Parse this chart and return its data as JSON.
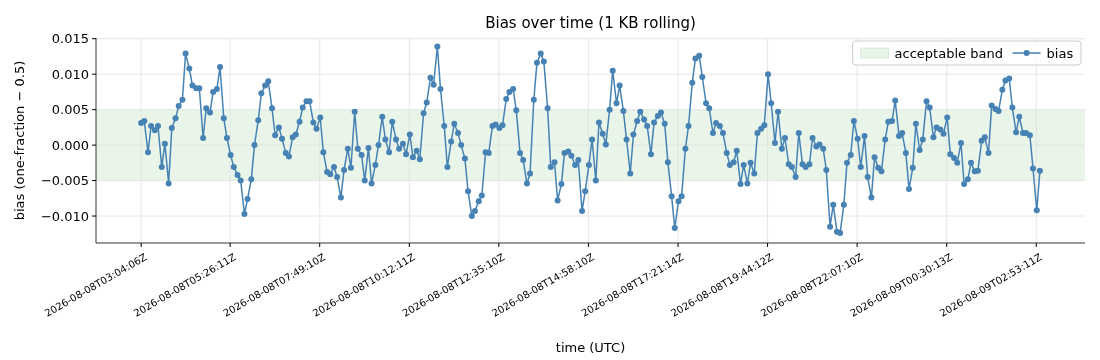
{
  "chart_data": {
    "type": "line",
    "title": "Bias over time (1 KB rolling)",
    "xlabel": "time (UTC)",
    "ylabel": "bias (one-fraction − 0.5)",
    "x": [
      "2026-08-08T03:04",
      "2026-08-08T03:09",
      "2026-08-08T03:15",
      "2026-08-08T03:20",
      "2026-08-08T03:26",
      "2026-08-08T03:31",
      "2026-08-08T03:37",
      "2026-08-08T03:42",
      "2026-08-08T03:48",
      "2026-08-08T03:53",
      "2026-08-08T03:59",
      "2026-08-08T04:04",
      "2026-08-08T04:10",
      "2026-08-08T04:15",
      "2026-08-08T04:21",
      "2026-08-08T04:26",
      "2026-08-08T04:32",
      "2026-08-08T04:37",
      "2026-08-08T04:43",
      "2026-08-08T04:48",
      "2026-08-08T04:54",
      "2026-08-08T04:59",
      "2026-08-08T05:05",
      "2026-08-08T05:10",
      "2026-08-08T05:16",
      "2026-08-08T05:21",
      "2026-08-08T05:27",
      "2026-08-08T05:32",
      "2026-08-08T05:38",
      "2026-08-08T05:43",
      "2026-08-08T05:49",
      "2026-08-08T05:54",
      "2026-08-08T06:00",
      "2026-08-08T06:05",
      "2026-08-08T06:11",
      "2026-08-08T06:16",
      "2026-08-08T06:22",
      "2026-08-08T06:27",
      "2026-08-08T06:33",
      "2026-08-08T06:38",
      "2026-08-08T06:44",
      "2026-08-08T06:49",
      "2026-08-08T06:55",
      "2026-08-08T07:00",
      "2026-08-08T07:06",
      "2026-08-08T07:11",
      "2026-08-08T07:17",
      "2026-08-08T07:22",
      "2026-08-08T07:28",
      "2026-08-08T07:33",
      "2026-08-08T07:39",
      "2026-08-08T07:44",
      "2026-08-08T07:50",
      "2026-08-08T07:55",
      "2026-08-08T08:01",
      "2026-08-08T08:06",
      "2026-08-08T08:12",
      "2026-08-08T08:17",
      "2026-08-08T08:23",
      "2026-08-08T08:28",
      "2026-08-08T08:34",
      "2026-08-08T08:39",
      "2026-08-08T08:45",
      "2026-08-08T08:50",
      "2026-08-08T08:56",
      "2026-08-08T09:01",
      "2026-08-08T09:07",
      "2026-08-08T09:12",
      "2026-08-08T09:18",
      "2026-08-08T09:23",
      "2026-08-08T09:29",
      "2026-08-08T09:34",
      "2026-08-08T09:40",
      "2026-08-08T09:45",
      "2026-08-08T09:51",
      "2026-08-08T09:56",
      "2026-08-08T10:02",
      "2026-08-08T10:07",
      "2026-08-08T10:13",
      "2026-08-08T10:18",
      "2026-08-08T10:24",
      "2026-08-08T10:29",
      "2026-08-08T10:35",
      "2026-08-08T10:40",
      "2026-08-08T10:46",
      "2026-08-08T10:51",
      "2026-08-08T10:57",
      "2026-08-08T11:02",
      "2026-08-08T11:08",
      "2026-08-08T11:13",
      "2026-08-08T11:19",
      "2026-08-08T11:24",
      "2026-08-08T11:30",
      "2026-08-08T11:35",
      "2026-08-08T11:41",
      "2026-08-08T11:46",
      "2026-08-08T11:52",
      "2026-08-08T11:57",
      "2026-08-08T12:03",
      "2026-08-08T12:08",
      "2026-08-08T12:14",
      "2026-08-08T12:19",
      "2026-08-08T12:25",
      "2026-08-08T12:30",
      "2026-08-08T12:36",
      "2026-08-08T12:41",
      "2026-08-08T12:47",
      "2026-08-08T12:52",
      "2026-08-08T12:58",
      "2026-08-08T13:03",
      "2026-08-08T13:09",
      "2026-08-08T13:14",
      "2026-08-08T13:20",
      "2026-08-08T13:25",
      "2026-08-08T13:31",
      "2026-08-08T13:36",
      "2026-08-08T13:42",
      "2026-08-08T13:47",
      "2026-08-08T13:53",
      "2026-08-08T13:58",
      "2026-08-08T14:04",
      "2026-08-08T14:09",
      "2026-08-08T14:15",
      "2026-08-08T14:20",
      "2026-08-08T14:26",
      "2026-08-08T14:31",
      "2026-08-08T14:37",
      "2026-08-08T14:42",
      "2026-08-08T14:48",
      "2026-08-08T14:53",
      "2026-08-08T14:59",
      "2026-08-08T15:04",
      "2026-08-08T15:10",
      "2026-08-08T15:15",
      "2026-08-08T15:21",
      "2026-08-08T15:26",
      "2026-08-08T15:32",
      "2026-08-08T15:37",
      "2026-08-08T15:43",
      "2026-08-08T15:48",
      "2026-08-08T15:54",
      "2026-08-08T15:59",
      "2026-08-08T16:05",
      "2026-08-08T16:10",
      "2026-08-08T16:16",
      "2026-08-08T16:21",
      "2026-08-08T16:27",
      "2026-08-08T16:32",
      "2026-08-08T16:38",
      "2026-08-08T16:43",
      "2026-08-08T16:49",
      "2026-08-08T16:54",
      "2026-08-08T17:00",
      "2026-08-08T17:05",
      "2026-08-08T17:11",
      "2026-08-08T17:16",
      "2026-08-08T17:22",
      "2026-08-08T17:27",
      "2026-08-08T17:33",
      "2026-08-08T17:38",
      "2026-08-08T17:44",
      "2026-08-08T17:49",
      "2026-08-08T17:55",
      "2026-08-08T18:00",
      "2026-08-08T18:06",
      "2026-08-08T18:11",
      "2026-08-08T18:17",
      "2026-08-08T18:22",
      "2026-08-08T18:28",
      "2026-08-08T18:33",
      "2026-08-08T18:39",
      "2026-08-08T18:44",
      "2026-08-08T18:50",
      "2026-08-08T18:55",
      "2026-08-08T19:01",
      "2026-08-08T19:06",
      "2026-08-08T19:12",
      "2026-08-08T19:17",
      "2026-08-08T19:23",
      "2026-08-08T19:28",
      "2026-08-08T19:34",
      "2026-08-08T19:39",
      "2026-08-08T19:45",
      "2026-08-08T19:50",
      "2026-08-08T19:56",
      "2026-08-08T20:01",
      "2026-08-08T20:07",
      "2026-08-08T20:12",
      "2026-08-08T20:18",
      "2026-08-08T20:23",
      "2026-08-08T20:29",
      "2026-08-08T20:34",
      "2026-08-08T20:40",
      "2026-08-08T20:45",
      "2026-08-08T20:51",
      "2026-08-08T20:56",
      "2026-08-08T21:02",
      "2026-08-08T21:07",
      "2026-08-08T21:13",
      "2026-08-08T21:18",
      "2026-08-08T21:24",
      "2026-08-08T21:29",
      "2026-08-08T21:35",
      "2026-08-08T21:40",
      "2026-08-08T21:46",
      "2026-08-08T21:51",
      "2026-08-08T21:57",
      "2026-08-08T22:02",
      "2026-08-08T22:08",
      "2026-08-08T22:13",
      "2026-08-08T22:19",
      "2026-08-08T22:24",
      "2026-08-08T22:30",
      "2026-08-08T22:35",
      "2026-08-08T22:41",
      "2026-08-08T22:46",
      "2026-08-08T22:52",
      "2026-08-08T22:57",
      "2026-08-08T23:03",
      "2026-08-08T23:08",
      "2026-08-08T23:14",
      "2026-08-08T23:19",
      "2026-08-08T23:25",
      "2026-08-08T23:30",
      "2026-08-08T23:36",
      "2026-08-08T23:41",
      "2026-08-08T23:47",
      "2026-08-08T23:52",
      "2026-08-08T23:58",
      "2026-08-09T00:03",
      "2026-08-09T00:09",
      "2026-08-09T00:14",
      "2026-08-09T00:20",
      "2026-08-09T00:25",
      "2026-08-09T00:31",
      "2026-08-09T00:36",
      "2026-08-09T00:42",
      "2026-08-09T00:47",
      "2026-08-09T00:53",
      "2026-08-09T00:58",
      "2026-08-09T01:04",
      "2026-08-09T01:09",
      "2026-08-09T01:15",
      "2026-08-09T01:20",
      "2026-08-09T01:26",
      "2026-08-09T01:31",
      "2026-08-09T01:37",
      "2026-08-09T01:42",
      "2026-08-09T01:48",
      "2026-08-09T01:53",
      "2026-08-09T01:59",
      "2026-08-09T02:04",
      "2026-08-09T02:10",
      "2026-08-09T02:15",
      "2026-08-09T02:21",
      "2026-08-09T02:26",
      "2026-08-09T02:32",
      "2026-08-09T02:37",
      "2026-08-09T02:43",
      "2026-08-09T02:48",
      "2026-08-09T02:54",
      "2026-08-09T02:59"
    ],
    "xlim": [
      "2026-08-08T01:52",
      "2026-08-09T04:11"
    ],
    "xticks": [
      {
        "value": "2026-08-08T03:04:06",
        "label": "2026-08-08T03:04:06Z"
      },
      {
        "value": "2026-08-08T05:26:11",
        "label": "2026-08-08T05:26:11Z"
      },
      {
        "value": "2026-08-08T07:49:10",
        "label": "2026-08-08T07:49:10Z"
      },
      {
        "value": "2026-08-08T10:12:11",
        "label": "2026-08-08T10:12:11Z"
      },
      {
        "value": "2026-08-08T12:35:10",
        "label": "2026-08-08T12:35:10Z"
      },
      {
        "value": "2026-08-08T14:58:10",
        "label": "2026-08-08T14:58:10Z"
      },
      {
        "value": "2026-08-08T17:21:14",
        "label": "2026-08-08T17:21:14Z"
      },
      {
        "value": "2026-08-08T19:44:12",
        "label": "2026-08-08T19:44:12Z"
      },
      {
        "value": "2026-08-08T22:07:10",
        "label": "2026-08-08T22:07:10Z"
      },
      {
        "value": "2026-08-09T00:30:13",
        "label": "2026-08-09T00:30:13Z"
      },
      {
        "value": "2026-08-09T02:53:11",
        "label": "2026-08-09T02:53:11Z"
      }
    ],
    "series": [
      {
        "name": "bias",
        "color": "#4682b4",
        "values": [
          0.0031,
          0.0034,
          -0.001,
          0.0027,
          0.0021,
          0.0027,
          -0.0031,
          0.0002,
          -0.0054,
          0.0024,
          0.0038,
          0.0055,
          0.0064,
          0.0129,
          0.0108,
          0.0084,
          0.008,
          0.008,
          0.001,
          0.0052,
          0.0046,
          0.0075,
          0.0079,
          0.011,
          0.0038,
          0.001,
          -0.0014,
          -0.0031,
          -0.0042,
          -0.005,
          -0.0097,
          -0.0076,
          -0.0048,
          0.0,
          0.0035,
          0.0073,
          0.0084,
          0.009,
          0.0052,
          0.0014,
          0.0025,
          0.0009,
          -0.0011,
          -0.0016,
          0.0011,
          0.0015,
          0.0033,
          0.0053,
          0.0062,
          0.0062,
          0.0032,
          0.0023,
          0.0039,
          -0.001,
          -0.0038,
          -0.0041,
          -0.0031,
          -0.0045,
          -0.0074,
          -0.0035,
          -0.0005,
          -0.0032,
          0.0047,
          -0.0005,
          -0.0014,
          -0.005,
          -0.0004,
          -0.0054,
          -0.0028,
          0.0,
          0.004,
          0.0008,
          -0.001,
          0.0033,
          0.0008,
          -0.0005,
          0.0002,
          -0.0013,
          0.0015,
          -0.0017,
          -0.0008,
          -0.002,
          0.0045,
          0.006,
          0.0095,
          0.0085,
          0.0139,
          0.0079,
          0.0027,
          -0.0031,
          0.0005,
          0.003,
          0.0017,
          0.0,
          -0.0019,
          -0.0065,
          -0.01,
          -0.0093,
          -0.0079,
          -0.0071,
          -0.001,
          -0.0011,
          0.0027,
          0.0029,
          0.0024,
          0.0028,
          0.0065,
          0.0075,
          0.0079,
          0.0049,
          -0.0011,
          -0.0021,
          -0.0054,
          -0.004,
          0.0064,
          0.0116,
          0.0129,
          0.0118,
          0.0052,
          -0.0031,
          -0.0024,
          -0.0078,
          -0.0055,
          -0.0011,
          -0.0009,
          -0.0015,
          -0.0028,
          -0.0021,
          -0.0093,
          -0.0065,
          -0.0028,
          0.0008,
          -0.005,
          0.0032,
          0.0016,
          0.0001,
          0.005,
          0.0105,
          0.0059,
          0.0084,
          0.0048,
          0.0008,
          -0.004,
          0.0015,
          0.0034,
          0.0047,
          0.0036,
          0.0027,
          -0.0013,
          0.0032,
          0.0041,
          0.0046,
          0.003,
          -0.0024,
          -0.0072,
          -0.0117,
          -0.0079,
          -0.0072,
          -0.0005,
          0.0027,
          0.0088,
          0.0122,
          0.0126,
          0.0096,
          0.0059,
          0.0052,
          0.0017,
          0.0031,
          0.0027,
          0.0017,
          -0.0011,
          -0.0028,
          -0.0024,
          -0.0008,
          -0.0055,
          -0.0028,
          -0.0054,
          -0.0025,
          -0.004,
          0.0017,
          0.0023,
          0.0028,
          0.01,
          0.0059,
          0.0003,
          0.0047,
          -0.0005,
          0.001,
          -0.0027,
          -0.0031,
          -0.0045,
          0.0017,
          -0.0027,
          -0.0031,
          -0.0027,
          0.001,
          -0.0002,
          0.0001,
          -0.0005,
          -0.0035,
          -0.0115,
          -0.0084,
          -0.0122,
          -0.0124,
          -0.0084,
          -0.0025,
          -0.0014,
          0.0034,
          0.0009,
          -0.0031,
          0.0013,
          -0.0045,
          -0.0074,
          -0.0017,
          -0.0032,
          -0.0037,
          0.0008,
          0.0033,
          0.0034,
          0.0063,
          0.0013,
          0.0017,
          -0.0011,
          -0.0062,
          -0.0032,
          0.003,
          -0.0007,
          0.0008,
          0.0062,
          0.0053,
          0.0011,
          0.0025,
          0.0022,
          0.0016,
          0.0039,
          -0.0013,
          -0.0018,
          -0.0025,
          0.0003,
          -0.0055,
          -0.0048,
          -0.0025,
          -0.0037,
          -0.0036,
          0.0006,
          0.0011,
          -0.0011,
          0.0056,
          0.0051,
          0.0048,
          0.0078,
          0.0091,
          0.0094,
          0.0053,
          0.0018,
          0.004,
          0.0017,
          0.0017,
          0.0014,
          -0.0033,
          -0.0092,
          -0.0036
        ]
      }
    ],
    "bands": [
      {
        "axis": "y",
        "from": -0.005,
        "to": 0.005,
        "label": "acceptable band",
        "color": "#2ca02c"
      }
    ],
    "ylim": [
      -0.0138,
      0.0151
    ],
    "yticks": [
      {
        "value": -0.01,
        "label": "−0.010"
      },
      {
        "value": -0.005,
        "label": "−0.005"
      },
      {
        "value": 0,
        "label": "0.000"
      },
      {
        "value": 0.005,
        "label": "0.005"
      },
      {
        "value": 0.01,
        "label": "0.010"
      },
      {
        "value": 0.015,
        "label": "0.015"
      }
    ],
    "grid": true,
    "legend": "top right",
    "marker": "circle"
  }
}
